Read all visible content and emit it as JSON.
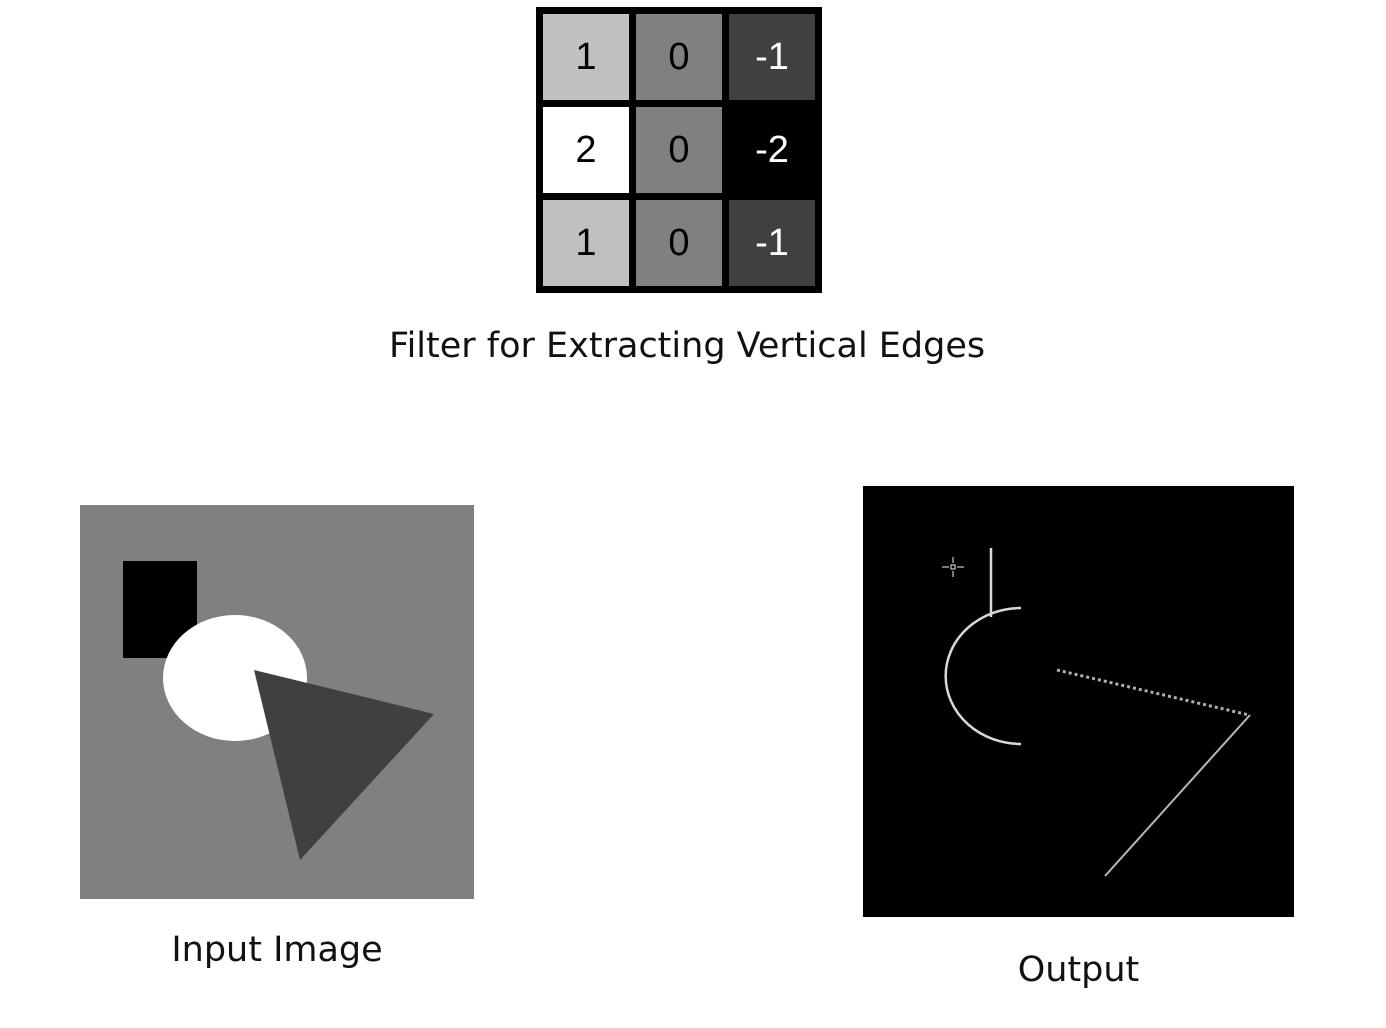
{
  "kernel": {
    "cells": [
      {
        "label": "1",
        "weight": 1,
        "fill": "#c0c0c0",
        "text_color": "#000000"
      },
      {
        "label": "0",
        "weight": 0,
        "fill": "#808080",
        "text_color": "#000000"
      },
      {
        "label": "-1",
        "weight": -1,
        "fill": "#404040",
        "text_color": "#ffffff"
      },
      {
        "label": "2",
        "weight": 2,
        "fill": "#ffffff",
        "text_color": "#000000"
      },
      {
        "label": "0",
        "weight": 0,
        "fill": "#808080",
        "text_color": "#000000"
      },
      {
        "label": "-2",
        "weight": -2,
        "fill": "#000000",
        "text_color": "#ffffff"
      },
      {
        "label": "1",
        "weight": 1,
        "fill": "#c0c0c0",
        "text_color": "#000000"
      },
      {
        "label": "0",
        "weight": 0,
        "fill": "#808080",
        "text_color": "#000000"
      },
      {
        "label": "-1",
        "weight": -1,
        "fill": "#404040",
        "text_color": "#ffffff"
      }
    ],
    "caption": "Filter for Extracting Vertical Edges"
  },
  "input_image": {
    "caption": "Input Image",
    "background_color": "#808080",
    "rectangle_color": "#000000",
    "ellipse_color": "#ffffff",
    "triangle_color": "#404040"
  },
  "output_image": {
    "caption": "Output",
    "background_color": "#000000",
    "edge_color": "#d8d8d8"
  }
}
